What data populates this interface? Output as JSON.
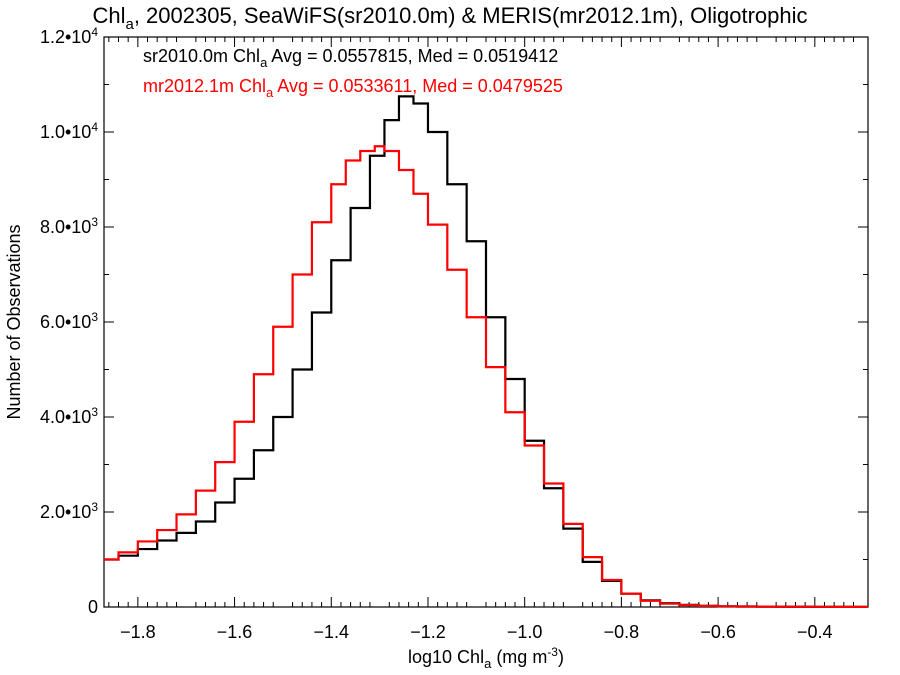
{
  "chart_data": {
    "type": "line",
    "title": "Chl_a, 2002305, SeaWiFS(sr2010.0m) & MERIS(mr2012.1m), Oligotrophic",
    "title_parts": [
      "Chl",
      "a",
      ", 2002305, SeaWiFS(sr2010.0m) & MERIS(mr2012.1m), Oligotrophic"
    ],
    "xlabel": "log10 Chl_a (mg m^-3)",
    "xlabel_parts": [
      "log10 Chl",
      "a",
      " (mg m",
      "-3",
      ")"
    ],
    "ylabel": "Number of Observations",
    "xlim": [
      -1.87,
      -0.29
    ],
    "ylim": [
      0,
      12000
    ],
    "grid": false,
    "x_ticks": [
      -1.8,
      -1.6,
      -1.4,
      -1.2,
      -1.0,
      -0.8,
      -0.6,
      -0.4
    ],
    "x_tick_labels": [
      "−1.8",
      "−1.6",
      "−1.4",
      "−1.2",
      "−1.0",
      "−0.8",
      "−0.6",
      "−0.4"
    ],
    "y_ticks": [
      0,
      2000,
      4000,
      6000,
      8000,
      10000,
      12000
    ],
    "y_tick_labels": [
      {
        "base": "0",
        "exp": ""
      },
      {
        "base": "2.0•10",
        "exp": "3"
      },
      {
        "base": "4.0•10",
        "exp": "3"
      },
      {
        "base": "6.0•10",
        "exp": "3"
      },
      {
        "base": "8.0•10",
        "exp": "3"
      },
      {
        "base": "1.0•10",
        "exp": "4"
      },
      {
        "base": "1.2•10",
        "exp": "4"
      }
    ],
    "annotations": [
      {
        "parts": [
          "sr2010.0m Chl",
          "a",
          " Avg = 0.0557815, Med = 0.0519412"
        ],
        "text": "sr2010.0m Chl_a Avg = 0.0557815, Med = 0.0519412",
        "color": "#000000"
      },
      {
        "parts": [
          "mr2012.1m Chl",
          "a",
          " Avg = 0.0533611, Med = 0.0479525"
        ],
        "text": "mr2012.1m Chl_a Avg = 0.0533611, Med = 0.0479525",
        "color": "#ff0000"
      }
    ],
    "series": [
      {
        "color": "#000000",
        "x": [
          -1.87,
          -1.84,
          -1.8,
          -1.76,
          -1.72,
          -1.68,
          -1.64,
          -1.6,
          -1.56,
          -1.52,
          -1.48,
          -1.44,
          -1.4,
          -1.36,
          -1.32,
          -1.29,
          -1.26,
          -1.23,
          -1.2,
          -1.16,
          -1.12,
          -1.08,
          -1.04,
          -1.0,
          -0.96,
          -0.92,
          -0.88,
          -0.84,
          -0.8,
          -0.76,
          -0.72,
          -0.68,
          -0.64,
          -0.6,
          -0.56,
          -0.52,
          -0.48,
          -0.44,
          -0.4,
          -0.36,
          -0.32,
          -0.29
        ],
        "values": [
          1000,
          1080,
          1220,
          1400,
          1560,
          1800,
          2200,
          2700,
          3300,
          4000,
          5000,
          6200,
          7300,
          8400,
          9500,
          10250,
          10750,
          10600,
          10000,
          8900,
          7700,
          6100,
          4800,
          3500,
          2500,
          1650,
          950,
          550,
          280,
          140,
          80,
          45,
          25,
          15,
          10,
          8,
          6,
          5,
          4,
          3,
          2,
          2
        ]
      },
      {
        "color": "#ff0000",
        "x": [
          -1.87,
          -1.84,
          -1.8,
          -1.76,
          -1.72,
          -1.68,
          -1.64,
          -1.6,
          -1.56,
          -1.52,
          -1.48,
          -1.44,
          -1.4,
          -1.37,
          -1.34,
          -1.31,
          -1.29,
          -1.26,
          -1.23,
          -1.2,
          -1.16,
          -1.12,
          -1.08,
          -1.04,
          -1.0,
          -0.96,
          -0.92,
          -0.88,
          -0.84,
          -0.8,
          -0.76,
          -0.72,
          -0.68,
          -0.64,
          -0.6,
          -0.56,
          -0.52,
          -0.48,
          -0.44,
          -0.4,
          -0.36,
          -0.32,
          -0.29
        ],
        "values": [
          1000,
          1150,
          1380,
          1620,
          1950,
          2450,
          3050,
          3900,
          4900,
          5900,
          7000,
          8100,
          8900,
          9400,
          9600,
          9700,
          9600,
          9200,
          8700,
          8050,
          7100,
          6100,
          5050,
          4100,
          3400,
          2600,
          1750,
          1050,
          570,
          280,
          130,
          70,
          40,
          24,
          15,
          10,
          8,
          6,
          5,
          4,
          3,
          2,
          2
        ]
      }
    ]
  }
}
